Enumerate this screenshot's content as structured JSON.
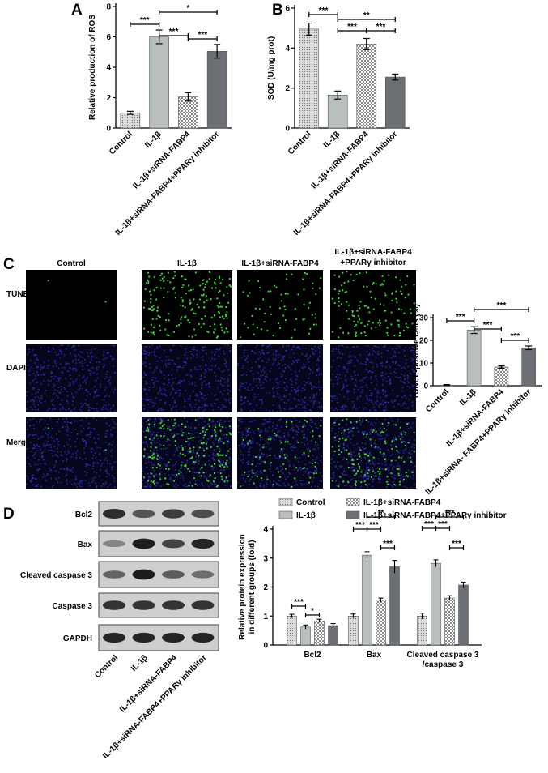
{
  "panel_labels": {
    "A": "A",
    "B": "B",
    "C": "C",
    "D": "D"
  },
  "colors": {
    "c0": "#d4d4d4",
    "c1": "#b9c0bc",
    "c2": "#e6e6e6",
    "c3": "#6c7074",
    "micro_bg": "#000000",
    "dapi": "#3a3ad8",
    "tunel": "#3cd93c"
  },
  "chart_data": [
    {
      "id": "A",
      "type": "bar",
      "categories": [
        "Control",
        "IL-1β",
        "IL-1β+siRNA-FABP4",
        "IL-1β+siRNA-FABP4+PPARγ inhibitor"
      ],
      "values": [
        1.0,
        6.0,
        2.05,
        5.05
      ],
      "errors": [
        0.1,
        0.45,
        0.28,
        0.45
      ],
      "ylabel": "Relative production of ROS",
      "ylim": [
        0,
        8
      ],
      "yticks": [
        0,
        2,
        4,
        6,
        8
      ],
      "sig": [
        {
          "a": 0,
          "b": 1,
          "text": "***"
        },
        {
          "a": 1,
          "b": 2,
          "text": "***"
        },
        {
          "a": 2,
          "b": 3,
          "text": "***"
        },
        {
          "a": 1,
          "b": 3,
          "text": "*"
        }
      ]
    },
    {
      "id": "B",
      "type": "bar",
      "categories": [
        "Control",
        "IL-1β",
        "IL-1β+siRNA-FABP4",
        "IL-1β+siRNA-FABP4+PPARγ inhibitor"
      ],
      "values": [
        4.95,
        1.65,
        4.2,
        2.55
      ],
      "errors": [
        0.3,
        0.2,
        0.28,
        0.15
      ],
      "ylabel": "SOD (U/mg prot)",
      "ylim": [
        0,
        6
      ],
      "yticks": [
        0,
        2,
        4,
        6
      ],
      "sig": [
        {
          "a": 0,
          "b": 1,
          "text": "***"
        },
        {
          "a": 1,
          "b": 2,
          "text": "***"
        },
        {
          "a": 2,
          "b": 3,
          "text": "***"
        },
        {
          "a": 1,
          "b": 3,
          "text": "**"
        }
      ]
    },
    {
      "id": "C",
      "type": "bar",
      "categories": [
        "Control",
        "IL-1β",
        "IL-1β+siRNA-FABP4",
        "IL-1β+siRNA- FABP4+PPARγ inhibitor"
      ],
      "values": [
        0.3,
        24.5,
        8.2,
        16.7
      ],
      "errors": [
        0.2,
        1.5,
        0.5,
        0.8
      ],
      "ylabel": "TUNEL-positive cells (%)",
      "ylim": [
        0,
        30
      ],
      "yticks": [
        0,
        10,
        20,
        30
      ],
      "sig": [
        {
          "a": 0,
          "b": 1,
          "text": "***"
        },
        {
          "a": 1,
          "b": 2,
          "text": "***"
        },
        {
          "a": 2,
          "b": 3,
          "text": "***"
        },
        {
          "a": 1,
          "b": 3,
          "text": "***"
        }
      ]
    },
    {
      "id": "D",
      "type": "bar",
      "groups": [
        "Bcl2",
        "Bax",
        "Cleaved caspase 3 /caspase 3"
      ],
      "series": [
        {
          "name": "Control",
          "values": [
            1.0,
            1.0,
            1.0
          ],
          "errors": [
            0.06,
            0.07,
            0.1
          ]
        },
        {
          "name": "IL-1β",
          "values": [
            0.62,
            3.1,
            2.82
          ],
          "errors": [
            0.07,
            0.12,
            0.12
          ]
        },
        {
          "name": "IL-1β+siRNA-FABP4",
          "values": [
            0.83,
            1.55,
            1.62
          ],
          "errors": [
            0.06,
            0.07,
            0.08
          ]
        },
        {
          "name": "IL-1β+siRNA-FABP4+PPARγ inhibitor",
          "values": [
            0.67,
            2.7,
            2.07
          ],
          "errors": [
            0.07,
            0.22,
            0.1
          ]
        }
      ],
      "ylabel": "Relative protein expression in different groups (fold)",
      "ylim": [
        0,
        4
      ],
      "yticks": [
        0,
        1,
        2,
        3,
        4
      ],
      "sig": [
        {
          "g": 0,
          "a": 0,
          "b": 1,
          "text": "***"
        },
        {
          "g": 0,
          "a": 1,
          "b": 2,
          "text": "*"
        },
        {
          "g": 1,
          "a": 0,
          "b": 1,
          "text": "***"
        },
        {
          "g": 1,
          "a": 1,
          "b": 2,
          "text": "***"
        },
        {
          "g": 1,
          "a": 2,
          "b": 3,
          "text": "***"
        },
        {
          "g": 1,
          "a": 1,
          "b": 3,
          "text": "**"
        },
        {
          "g": 2,
          "a": 0,
          "b": 1,
          "text": "***"
        },
        {
          "g": 2,
          "a": 1,
          "b": 2,
          "text": "***"
        },
        {
          "g": 2,
          "a": 2,
          "b": 3,
          "text": "***"
        },
        {
          "g": 2,
          "a": 1,
          "b": 3,
          "text": "***"
        }
      ]
    }
  ],
  "microscopy": {
    "columns": [
      "Control",
      "IL-1β",
      "IL-1β+siRNA-FABP4",
      "IL-1β+siRNA-FABP4\n+PPARγ inhibitor"
    ],
    "rows": [
      "TUNEL",
      "DAPI",
      "Merge"
    ],
    "tunel_density": [
      0.0,
      1.0,
      0.35,
      0.7
    ]
  },
  "blots": {
    "rows": [
      "Bcl2",
      "Bax",
      "Cleaved caspase 3",
      "Caspase 3",
      "GAPDH"
    ],
    "intensity": [
      [
        0.85,
        0.6,
        0.75,
        0.65
      ],
      [
        0.3,
        0.95,
        0.7,
        0.9
      ],
      [
        0.5,
        0.95,
        0.55,
        0.45
      ],
      [
        0.8,
        0.8,
        0.8,
        0.8
      ],
      [
        0.9,
        0.9,
        0.9,
        0.9
      ]
    ],
    "lanes": [
      "Control",
      "IL-1β",
      "IL-1β+siRNA-FABP4",
      "IL-1β+siRNA-FABP4+PPARγ inhibitor"
    ]
  }
}
